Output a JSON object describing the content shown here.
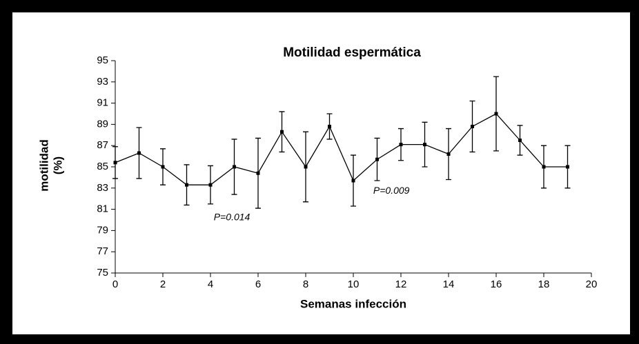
{
  "chart_data": {
    "type": "line",
    "title": "Motilidad espermática",
    "xlabel": "Semanas infección",
    "ylabel": [
      "motilidad",
      "(%)"
    ],
    "x": [
      0,
      1,
      2,
      3,
      4,
      5,
      6,
      7,
      8,
      9,
      10,
      11,
      12,
      13,
      14,
      15,
      16,
      17,
      18,
      19
    ],
    "series": [
      {
        "color": "#000000",
        "values": [
          85.4,
          86.3,
          85.0,
          83.3,
          83.3,
          85.0,
          84.4,
          88.3,
          85.0,
          88.8,
          83.7,
          85.7,
          87.1,
          87.1,
          86.2,
          88.8,
          90.0,
          87.5,
          85.0,
          85.0
        ],
        "errors": [
          1.5,
          2.4,
          1.7,
          1.9,
          1.8,
          2.6,
          3.3,
          1.9,
          3.3,
          1.2,
          2.4,
          2.0,
          1.5,
          2.1,
          2.4,
          2.4,
          3.5,
          1.4,
          2.0,
          2.0
        ]
      }
    ],
    "annotations": [
      {
        "text": "P=0.014",
        "x": 4.9,
        "y": 80.2
      },
      {
        "text": "P=0.009",
        "x": 11.6,
        "y": 82.7
      }
    ],
    "xlim": [
      0,
      20
    ],
    "xticks": [
      0,
      2,
      4,
      6,
      8,
      10,
      12,
      14,
      16,
      18,
      20
    ],
    "ylim": [
      75,
      95
    ],
    "yticks": [
      75,
      77,
      79,
      81,
      83,
      85,
      87,
      89,
      91,
      93,
      95
    ]
  }
}
